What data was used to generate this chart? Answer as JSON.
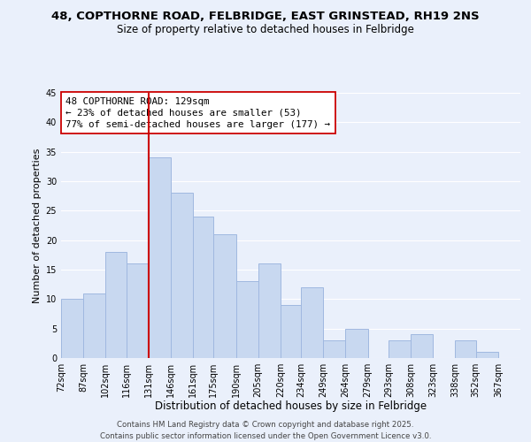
{
  "title_line1": "48, COPTHORNE ROAD, FELBRIDGE, EAST GRINSTEAD, RH19 2NS",
  "title_line2": "Size of property relative to detached houses in Felbridge",
  "xlabel": "Distribution of detached houses by size in Felbridge",
  "ylabel": "Number of detached properties",
  "bin_labels": [
    "72sqm",
    "87sqm",
    "102sqm",
    "116sqm",
    "131sqm",
    "146sqm",
    "161sqm",
    "175sqm",
    "190sqm",
    "205sqm",
    "220sqm",
    "234sqm",
    "249sqm",
    "264sqm",
    "279sqm",
    "293sqm",
    "308sqm",
    "323sqm",
    "338sqm",
    "352sqm",
    "367sqm"
  ],
  "bin_edges": [
    72,
    87,
    102,
    116,
    131,
    146,
    161,
    175,
    190,
    205,
    220,
    234,
    249,
    264,
    279,
    293,
    308,
    323,
    338,
    352,
    367,
    382
  ],
  "counts": [
    10,
    11,
    18,
    16,
    34,
    28,
    24,
    21,
    13,
    16,
    9,
    12,
    3,
    5,
    0,
    3,
    4,
    0,
    3,
    1,
    0
  ],
  "bar_color": "#c8d8f0",
  "bar_edgecolor": "#a0b8e0",
  "bar_linewidth": 0.7,
  "vline_x": 131,
  "vline_color": "#cc0000",
  "vline_linewidth": 1.5,
  "annotation_line1": "48 COPTHORNE ROAD: 129sqm",
  "annotation_line2": "← 23% of detached houses are smaller (53)",
  "annotation_line3": "77% of semi-detached houses are larger (177) →",
  "annotation_box_edgecolor": "#cc0000",
  "annotation_box_facecolor": "#ffffff",
  "ylim": [
    0,
    45
  ],
  "yticks": [
    0,
    5,
    10,
    15,
    20,
    25,
    30,
    35,
    40,
    45
  ],
  "background_color": "#eaf0fb",
  "grid_color": "#ffffff",
  "footer_line1": "Contains HM Land Registry data © Crown copyright and database right 2025.",
  "footer_line2": "Contains public sector information licensed under the Open Government Licence v3.0.",
  "title_fontsize": 9.5,
  "subtitle_fontsize": 8.5,
  "xlabel_fontsize": 8.5,
  "ylabel_fontsize": 8.0,
  "tick_fontsize": 7.0,
  "annotation_fontsize": 7.8,
  "footer_fontsize": 6.2
}
